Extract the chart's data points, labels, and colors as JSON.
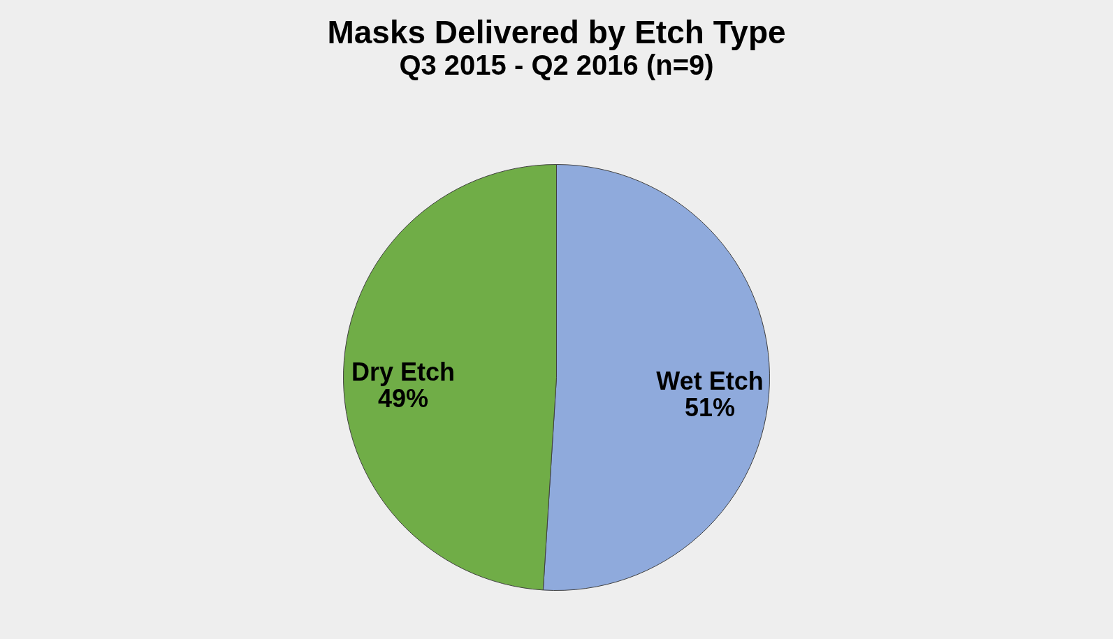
{
  "chart_data": {
    "type": "pie",
    "title": "Masks Delivered by Etch Type",
    "subtitle": "Q3 2015 - Q2 2016 (n=9)",
    "categories": [
      "Wet Etch",
      "Dry Etch"
    ],
    "values": [
      51,
      49
    ],
    "colors": [
      "#8faadc",
      "#70ad47"
    ],
    "value_labels": [
      "51%",
      "49%"
    ],
    "legend": false
  }
}
